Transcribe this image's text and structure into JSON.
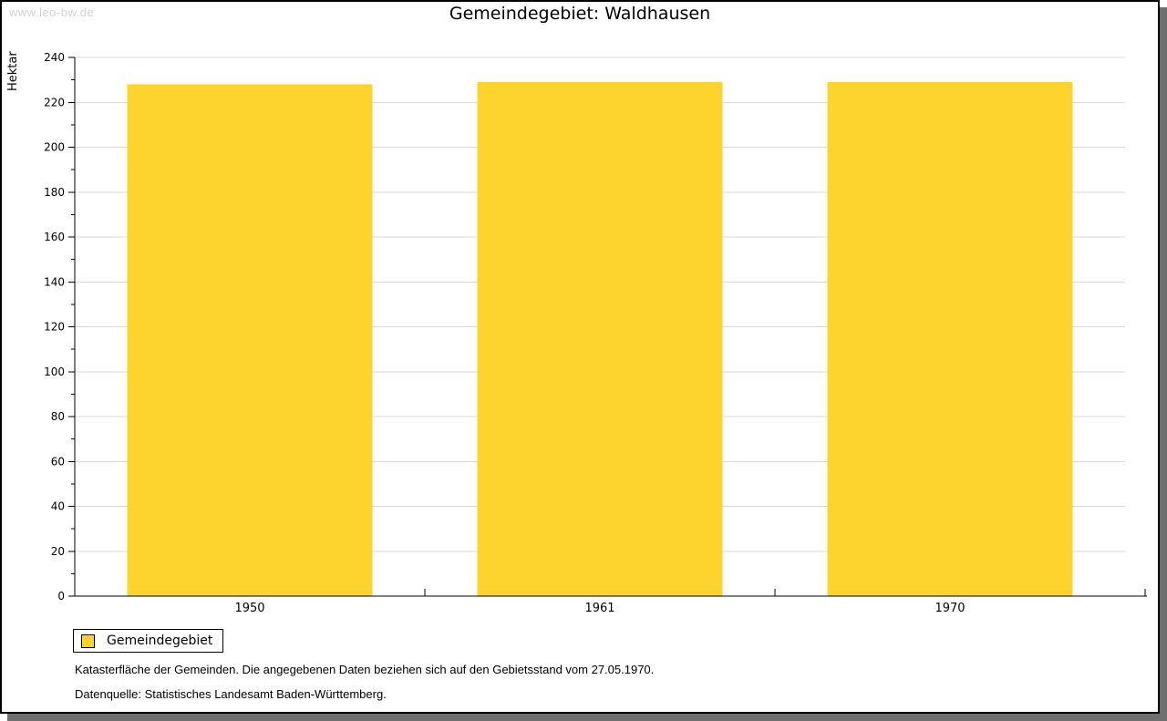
{
  "watermark": "www.leo-bw.de",
  "chart_data": {
    "type": "bar",
    "title": "Gemeindegebiet: Waldhausen",
    "xlabel": "",
    "ylabel": "Hektar",
    "categories": [
      "1950",
      "1961",
      "1970"
    ],
    "series": [
      {
        "name": "Gemeindegebiet",
        "values": [
          228,
          229,
          229
        ]
      }
    ],
    "ylim": [
      0,
      240
    ],
    "y_ticks": [
      0,
      20,
      40,
      60,
      80,
      100,
      120,
      140,
      160,
      180,
      200,
      220,
      240
    ],
    "y_minor_tick_step": 10,
    "grid": true,
    "legend_position": "bottom-left"
  },
  "legend": {
    "label": "Gemeindegebiet",
    "swatch_color": "#fcd42d"
  },
  "footnotes": {
    "line1": "Katasterfläche der Gemeinden. Die angegebenen Daten beziehen sich auf den Gebietsstand vom 27.05.1970.",
    "line2": "Datenquelle: Statistisches Landesamt Baden-Württemberg."
  },
  "colors": {
    "bar": "#fcd42d",
    "grid": "#d9d9d9",
    "axis": "#000000",
    "shadow": "#6f6f6f",
    "watermark": "#d2d2d2"
  }
}
